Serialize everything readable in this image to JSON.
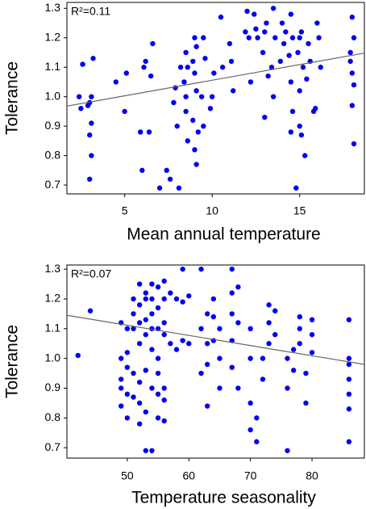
{
  "chart_data": [
    {
      "type": "scatter",
      "x_label": "Mean annual temperature",
      "y_label": "Tolerance",
      "annotation": "R²=0.11",
      "color": "#0000ee",
      "xlim": [
        1.7,
        18.7
      ],
      "ylim": [
        0.67,
        1.32
      ],
      "xticks": [
        5,
        10,
        15
      ],
      "yticks": [
        0.7,
        0.8,
        0.9,
        {
          "value": 1,
          "label": "1.0"
        },
        1.1,
        1.2,
        1.3
      ],
      "x": [
        2.5,
        2.6,
        2.4,
        3,
        3.1,
        2.9,
        3.1,
        3,
        3.1,
        3,
        3.2,
        4.5,
        5,
        5.1,
        6,
        6.1,
        5.9,
        6.2,
        6.5,
        6.6,
        6.4,
        7,
        7.4,
        7.6,
        7.9,
        8,
        8.1,
        8.2,
        7.8,
        8.5,
        8.6,
        8.4,
        8.5,
        8.6,
        8.5,
        9,
        9.1,
        8.9,
        9,
        9.1,
        8.9,
        9,
        9.1,
        9.2,
        9.5,
        9.6,
        9.4,
        9.5,
        10,
        10.1,
        9.9,
        10.5,
        10.6,
        11,
        11.1,
        11.2,
        12,
        12.1,
        11.9,
        12.2,
        12.5,
        12.6,
        12.4,
        13,
        13.1,
        12.9,
        13.2,
        13,
        13.5,
        13.6,
        13.4,
        13.5,
        14,
        14.1,
        13.9,
        14.2,
        14.5,
        14.6,
        14.4,
        14.5,
        14.6,
        14.5,
        14.8,
        15,
        15.1,
        14.9,
        15.2,
        15,
        15.1,
        15.3,
        15,
        15.5,
        15.6,
        15.4,
        16,
        16.1,
        15.8,
        15.9,
        16.2,
        18,
        18.1,
        17.9,
        18,
        18.1,
        18,
        18.1,
        17.9
      ],
      "values": [
        0.96,
        1.11,
        1.0,
        0.98,
        1.0,
        0.97,
        0.91,
        0.87,
        0.8,
        0.72,
        1.13,
        1.05,
        0.95,
        1.08,
        0.75,
        1.1,
        0.88,
        1.12,
        1.07,
        1.18,
        0.88,
        0.69,
        0.75,
        0.72,
        1.03,
        0.9,
        0.69,
        1.1,
        0.98,
        1.15,
        1.1,
        1.05,
        0.95,
        0.85,
        1.0,
        1.2,
        1.17,
        1.12,
        1.08,
        1.02,
        0.92,
        0.82,
        0.77,
        0.88,
        1.2,
        1.13,
        1.0,
        0.9,
        1.0,
        1.08,
        0.96,
        1.27,
        1.1,
        1.18,
        1.12,
        1.02,
        1.29,
        1.2,
        1.22,
        1.05,
        1.23,
        1.2,
        1.28,
        1.22,
        1.25,
        1.15,
        1.07,
        0.93,
        1.3,
        1.2,
        1.1,
        1.0,
        1.25,
        1.18,
        1.12,
        1.22,
        1.28,
        1.2,
        1.14,
        1.05,
        0.95,
        0.88,
        0.69,
        1.2,
        1.22,
        1.15,
        1.1,
        1.02,
        0.87,
        0.8,
        0.9,
        1.18,
        1.12,
        1.06,
        1.25,
        1.2,
        0.95,
        0.96,
        1.1,
        1.27,
        1.2,
        1.15,
        1.08,
        1.04,
        0.97,
        0.84,
        1.12
      ],
      "trend": {
        "x": [
          1.7,
          18.7
        ],
        "values": [
          0.968,
          1.148
        ],
        "color": "#666666"
      }
    },
    {
      "type": "scatter",
      "x_label": "Temperature seasonality",
      "y_label": "Tolerance",
      "annotation": "R²=0.07",
      "color": "#0000ee",
      "xlim": [
        40.2,
        88.5
      ],
      "ylim": [
        0.665,
        1.314
      ],
      "xticks": [
        50,
        60,
        70,
        80
      ],
      "yticks": [
        0.7,
        0.8,
        0.9,
        {
          "value": 1,
          "label": "1.0"
        },
        1.1,
        1.2,
        1.3
      ],
      "x": [
        42,
        44,
        49,
        49,
        49,
        49,
        49,
        50,
        50,
        50,
        50,
        50,
        51,
        51,
        51,
        51,
        51,
        52,
        52,
        52,
        52,
        52,
        52,
        52,
        53,
        53,
        53,
        53,
        53,
        53,
        53,
        54,
        54,
        54,
        54,
        54,
        54,
        54,
        55,
        55,
        55,
        55,
        55,
        55,
        55,
        56,
        56,
        56,
        56,
        56,
        56,
        56,
        57,
        57,
        58,
        58,
        59,
        59,
        59,
        60,
        60,
        62,
        62,
        62,
        63,
        63,
        63,
        63,
        64,
        64,
        64,
        65,
        65,
        65,
        67,
        67,
        67,
        67,
        67,
        68,
        68,
        68,
        70,
        70,
        70,
        70,
        71,
        71,
        72,
        72,
        73,
        73,
        73,
        74,
        74,
        76,
        76,
        76,
        77,
        77,
        78,
        78,
        78,
        79,
        79,
        80,
        80,
        80,
        86,
        86,
        86,
        86,
        86,
        86,
        86
      ],
      "values": [
        1.01,
        1.16,
        1.12,
        1.0,
        0.93,
        0.84,
        0.9,
        1.1,
        1.02,
        0.97,
        0.88,
        0.8,
        1.2,
        1.15,
        1.1,
        0.95,
        0.87,
        1.25,
        1.18,
        1.12,
        1.05,
        0.92,
        0.85,
        0.78,
        1.22,
        1.2,
        1.13,
        1.08,
        0.96,
        0.82,
        0.69,
        1.25,
        1.2,
        1.15,
        1.1,
        1.03,
        0.9,
        0.69,
        1.24,
        1.17,
        1.1,
        1.0,
        0.95,
        0.88,
        0.8,
        1.26,
        1.2,
        1.12,
        1.08,
        0.9,
        0.86,
        0.79,
        1.22,
        1.05,
        1.2,
        1.03,
        1.3,
        1.19,
        1.06,
        1.21,
        1.05,
        1.3,
        1.1,
        0.95,
        1.15,
        1.05,
        0.98,
        0.84,
        1.2,
        1.14,
        1.06,
        1.1,
        1.0,
        0.9,
        1.3,
        1.22,
        1.15,
        1.06,
        0.97,
        1.24,
        1.12,
        0.9,
        1.1,
        1.0,
        0.85,
        0.76,
        0.72,
        0.8,
        1.0,
        0.93,
        1.18,
        1.12,
        1.05,
        1.16,
        1.08,
        1.0,
        0.9,
        0.69,
        1.03,
        0.96,
        1.14,
        1.1,
        1.05,
        0.85,
        0.95,
        1.13,
        1.08,
        1.02,
        1.13,
        1.0,
        0.98,
        0.93,
        0.88,
        0.83,
        0.72
      ],
      "trend": {
        "x": [
          40.2,
          88.5
        ],
        "values": [
          1.145,
          0.98
        ],
        "color": "#666666"
      }
    }
  ]
}
